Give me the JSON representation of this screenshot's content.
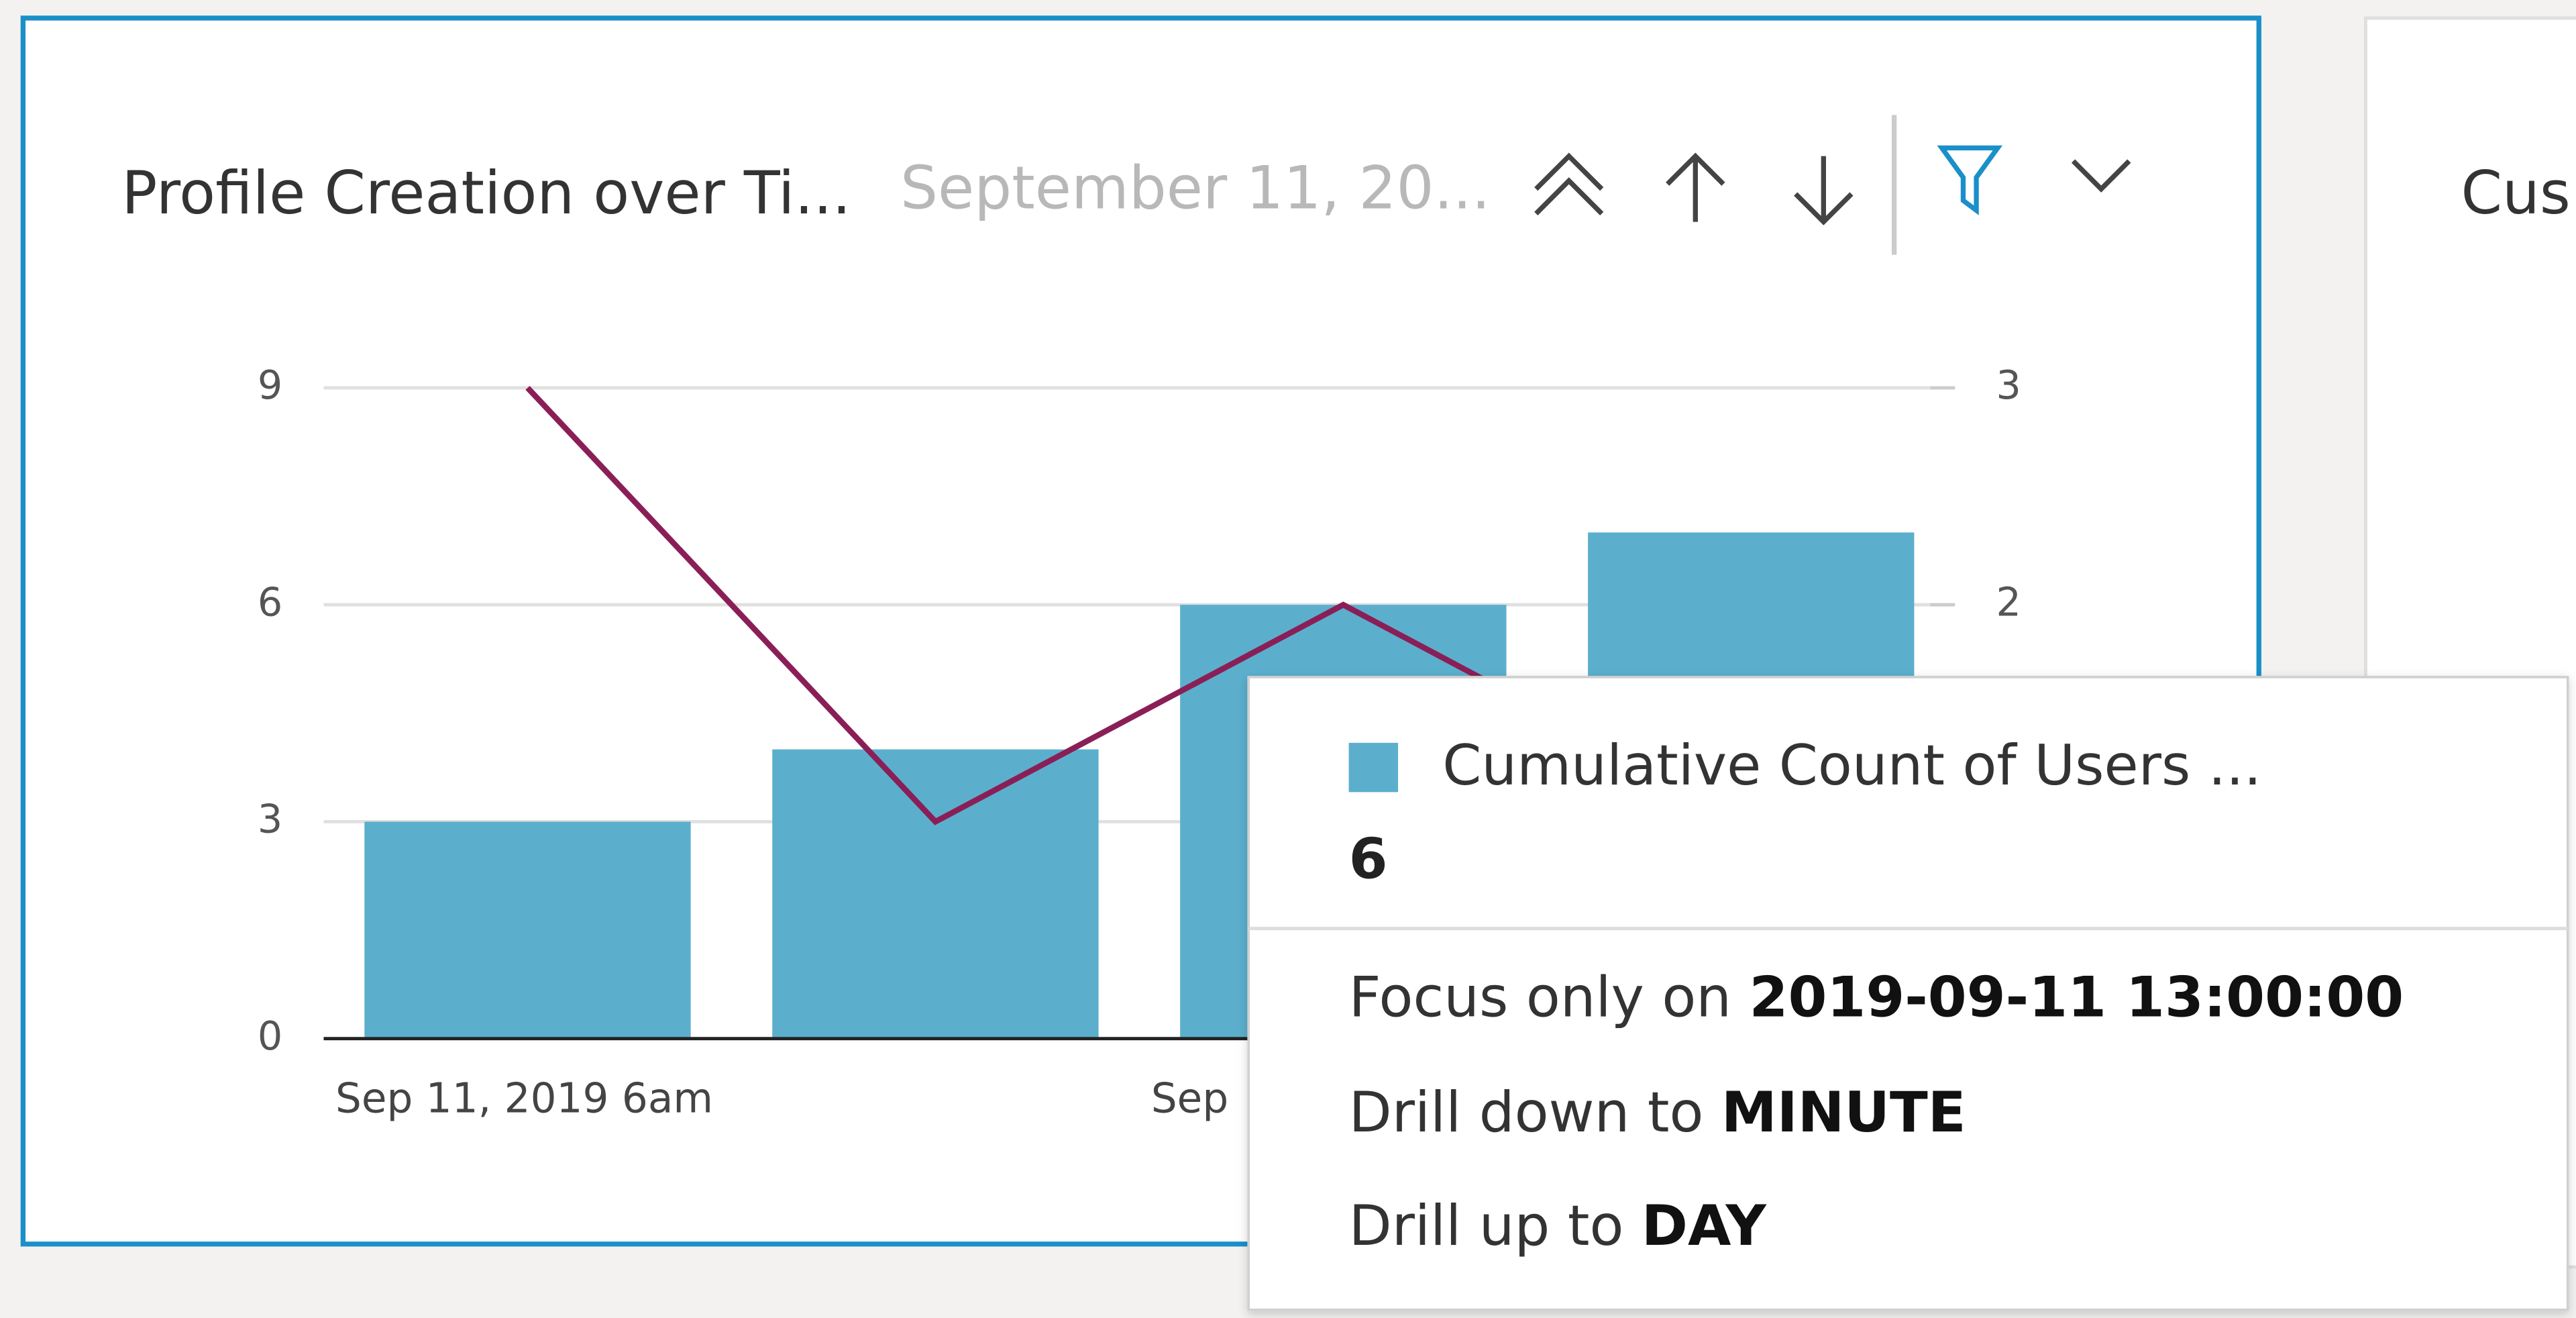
{
  "chart_data": {
    "type": "combo",
    "title": "Profile Creation over Ti...",
    "subtitle": "September 11, 20...",
    "categories": [
      "Sep 11, 2019 6am",
      null,
      "Sep",
      null
    ],
    "series": [
      {
        "name": "Cumulative Count of Users ...",
        "type": "bar",
        "color": "#5bafcd",
        "values": [
          3,
          4,
          6,
          7
        ]
      },
      {
        "type": "line",
        "color": "#8a1f57",
        "axis": "y2",
        "values": [
          3,
          1,
          2,
          1
        ]
      }
    ],
    "ylim": [
      0,
      9
    ],
    "yticks": [
      0,
      3,
      6,
      9
    ],
    "y2lim": [
      0,
      3
    ],
    "y2ticks": [
      0,
      1,
      2,
      3
    ],
    "grid": true
  },
  "tooltip": {
    "series_name": "Cumulative Count of Users ...",
    "menu": [
      {
        "prefix": "Focus only on",
        "value": "2019-09-11 13:00:00"
      },
      {
        "prefix": "Drill down to",
        "value": "MINUTE"
      },
      {
        "prefix": "Drill up to",
        "value": "DAY"
      }
    ]
  },
  "next_card": {
    "title": "Cus"
  }
}
